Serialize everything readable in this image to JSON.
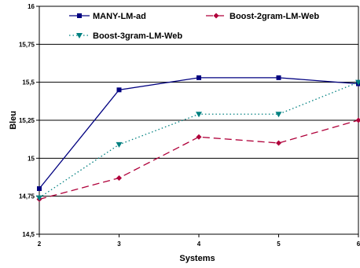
{
  "chart_data": {
    "type": "line",
    "x": [
      2,
      3,
      4,
      5,
      6
    ],
    "x_tick_labels": [
      "2",
      "3",
      "4",
      "5",
      "6"
    ],
    "y_tick_labels": [
      "14,5",
      "14,75",
      "15",
      "15,25",
      "15,5",
      "15,75",
      "16"
    ],
    "y_ticks": [
      14.5,
      14.75,
      15.0,
      15.25,
      15.5,
      15.75,
      16.0
    ],
    "xlim": [
      2,
      6
    ],
    "ylim": [
      14.5,
      16.0
    ],
    "xlabel": "Systems",
    "ylabel": "Bleu",
    "grid": true,
    "legend_position": "top",
    "series": [
      {
        "name": "MANY-LM-ad",
        "values": [
          14.8,
          15.45,
          15.53,
          15.53,
          15.49
        ],
        "color": "#000080",
        "line_style": "solid",
        "marker": "square"
      },
      {
        "name": "Boost-2gram-LM-Web",
        "values": [
          14.73,
          14.87,
          15.14,
          15.1,
          15.25
        ],
        "color": "#b0003a",
        "line_style": "dashed",
        "marker": "diamond"
      },
      {
        "name": "Boost-3gram-LM-Web",
        "values": [
          14.74,
          15.09,
          15.29,
          15.29,
          15.5
        ],
        "color": "#008080",
        "line_style": "dotted",
        "marker": "triangle-down"
      }
    ]
  }
}
